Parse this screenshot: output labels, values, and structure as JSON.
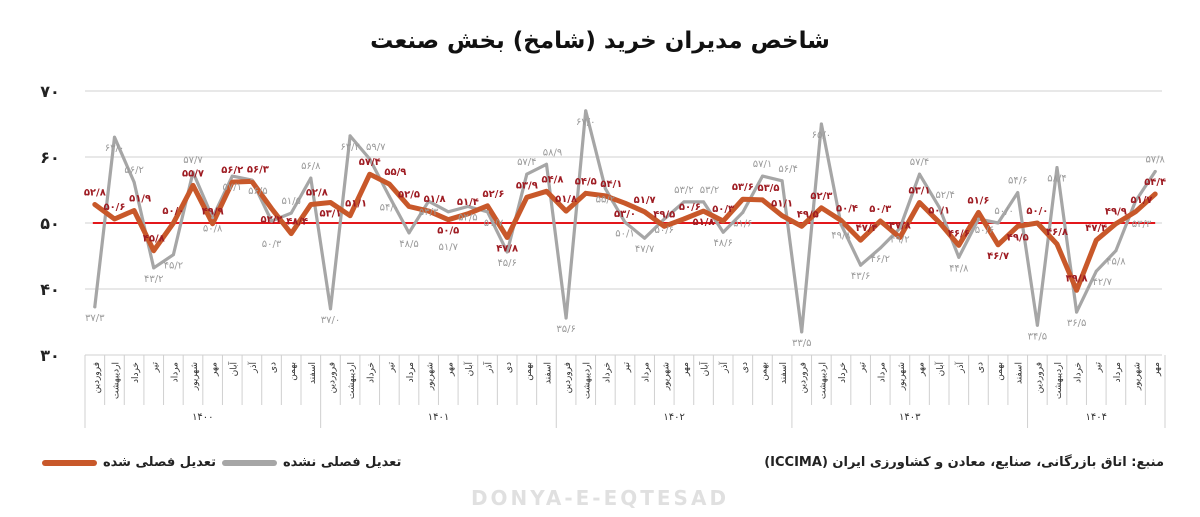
{
  "title": "شاخص مدیران خرید (شامخ) بخش صنعت",
  "source": "منبع: اتاق بازرگانی، صنایع، معادن و کشاورزی ایران (ICCIMA)",
  "watermark": "DONYA-E-EQTESAD",
  "legend": {
    "adjusted": "تعدیل فصلی شده",
    "unadjusted": "تعدیل فصلی نشده"
  },
  "colors": {
    "adjusted": "#c8582a",
    "unadjusted": "#a6a6a6",
    "threshold": "#e3171b",
    "adjusted_label": "#9e1b22",
    "unadjusted_label": "#9a9a9a"
  },
  "chart_data": {
    "type": "line",
    "title": "شاخص مدیران خرید (شامخ) بخش صنعت",
    "ylim": [
      30,
      70
    ],
    "yticks": [
      30,
      40,
      50,
      60,
      70
    ],
    "grid": true,
    "reference_line": 50,
    "legend_position": "bottom-left",
    "years": [
      {
        "label": "۱۴۰۰",
        "months": [
          "فروردین",
          "اردیبهشت",
          "خرداد",
          "تیر",
          "مرداد",
          "شهریور",
          "مهر",
          "آبان",
          "آذر",
          "دی",
          "بهمن",
          "اسفند"
        ]
      },
      {
        "label": "۱۴۰۱",
        "months": [
          "فروردین",
          "اردیبهشت",
          "خرداد",
          "تیر",
          "مرداد",
          "شهریور",
          "مهر",
          "آبان",
          "آذر",
          "دی",
          "بهمن",
          "اسفند"
        ]
      },
      {
        "label": "۱۴۰۲",
        "months": [
          "فروردین",
          "اردیبهشت",
          "خرداد",
          "تیر",
          "مرداد",
          "شهریور",
          "مهر",
          "آبان",
          "آذر",
          "دی",
          "بهمن",
          "اسفند"
        ]
      },
      {
        "label": "۱۴۰۳",
        "months": [
          "فروردین",
          "اردیبهشت",
          "خرداد",
          "تیر",
          "مرداد",
          "شهریور",
          "مهر",
          "آبان",
          "آذر",
          "دی",
          "بهمن",
          "اسفند"
        ]
      },
      {
        "label": "۱۴۰۴",
        "months": [
          "فروردین",
          "اردیبهشت",
          "خرداد",
          "تیر",
          "مرداد",
          "شهریور",
          "مهر"
        ]
      }
    ],
    "series": [
      {
        "name": "تعدیل فصلی شده",
        "values": [
          52.8,
          50.6,
          51.9,
          45.8,
          50.0,
          55.7,
          49.9,
          56.2,
          56.3,
          52.2,
          48.4,
          52.8,
          53.1,
          51.1,
          57.4,
          55.9,
          52.5,
          51.8,
          50.5,
          51.4,
          52.6,
          47.8,
          53.9,
          54.8,
          51.8,
          54.5,
          54.1,
          53.0,
          51.7,
          49.5,
          50.6,
          51.8,
          50.3,
          53.6,
          53.5,
          51.1,
          49.5,
          52.3,
          50.4,
          47.4,
          50.3,
          47.8,
          53.1,
          50.1,
          46.6,
          51.6,
          46.7,
          49.5,
          50.0,
          46.8,
          39.8,
          47.4,
          49.9,
          51.7,
          54.4
        ]
      },
      {
        "name": "تعدیل فصلی نشده",
        "values": [
          37.3,
          63.0,
          56.2,
          43.2,
          45.2,
          57.7,
          50.8,
          57.1,
          56.5,
          50.3,
          51.5,
          56.8,
          37.0,
          63.2,
          59.7,
          54.0,
          48.5,
          53.3,
          51.7,
          52.5,
          51.7,
          45.6,
          57.4,
          58.9,
          35.6,
          67.0,
          55.2,
          50.1,
          47.7,
          50.6,
          53.2,
          53.2,
          48.6,
          51.6,
          57.1,
          56.4,
          33.5,
          65.0,
          49.8,
          43.6,
          46.2,
          49.2,
          57.4,
          52.4,
          44.8,
          50.6,
          50.0,
          54.6,
          34.5,
          58.4,
          36.5,
          42.7,
          45.8,
          53.3,
          57.8
        ]
      }
    ]
  }
}
